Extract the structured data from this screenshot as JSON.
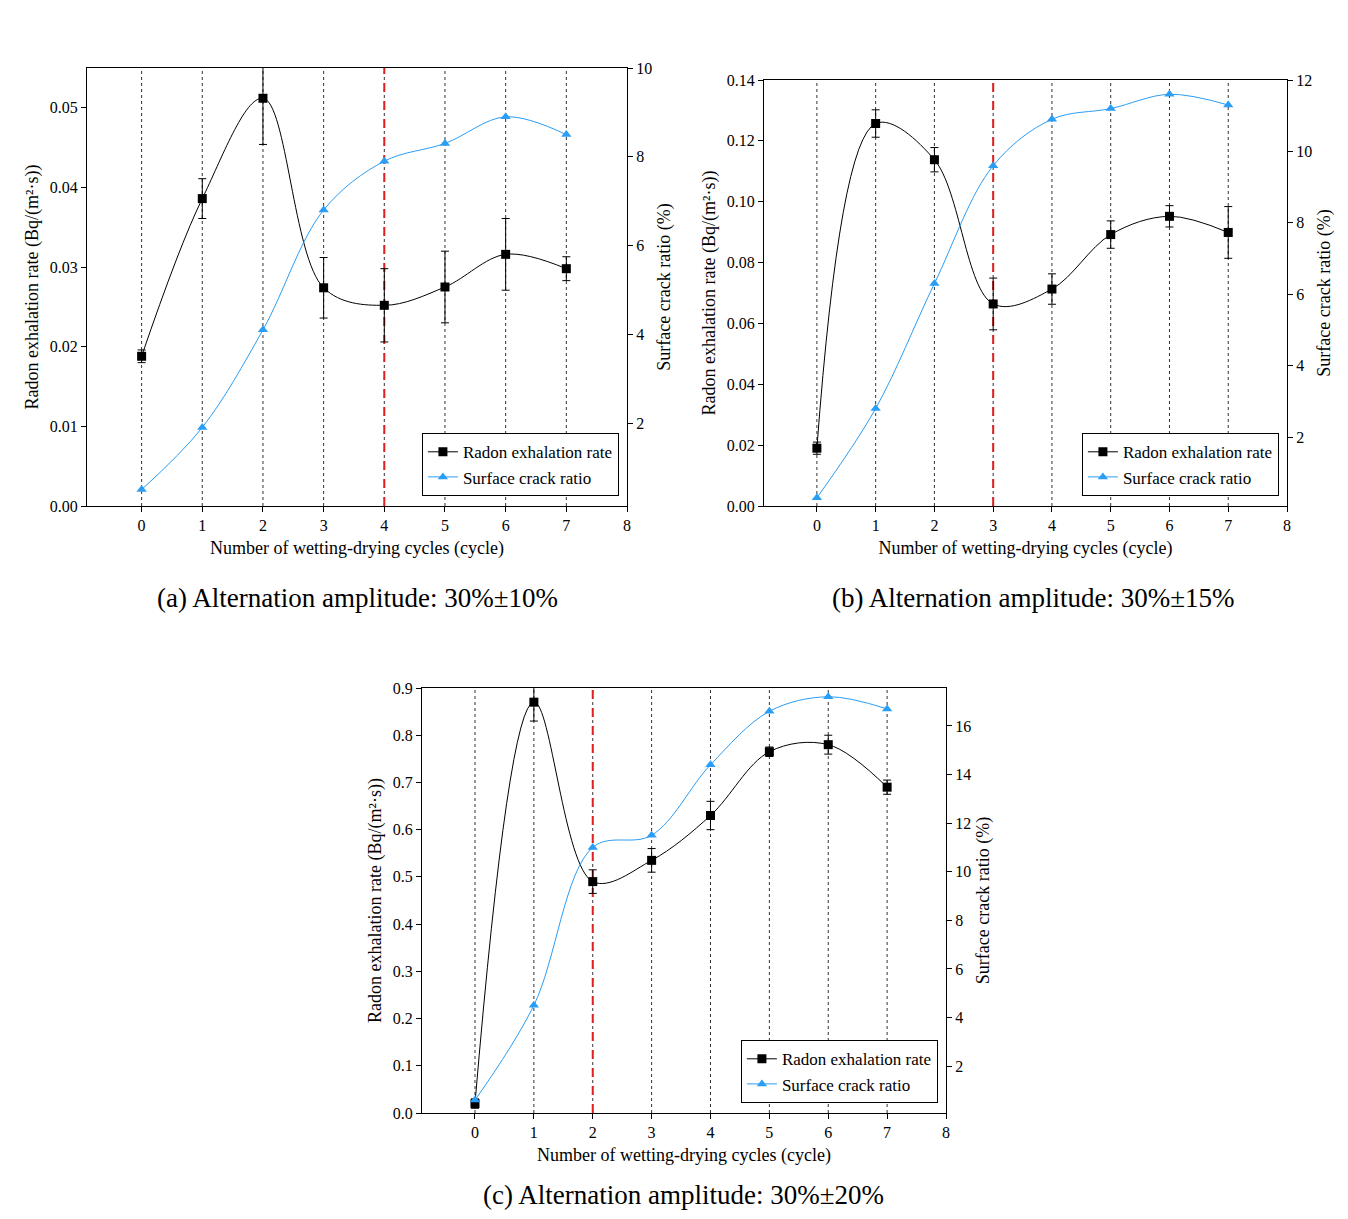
{
  "chart_data": [
    {
      "type": "line",
      "title": "(a) Alternation amplitude: 30%±10%",
      "x_label": "Number of wetting-drying cycles (cycle)",
      "y_label": "Radon exhalation rate (Bq/(m²·s))",
      "y2_label": "Surface crack ratio (%)",
      "x": [
        0,
        1,
        2,
        3,
        4,
        5,
        6,
        7
      ],
      "xlim": [
        -0.9,
        8
      ],
      "xticks": [
        0,
        1,
        2,
        3,
        4,
        5,
        6,
        7,
        8
      ],
      "ylim": [
        0,
        0.055
      ],
      "yticks": [
        {
          "value": 0,
          "label": "0.00"
        },
        0.01,
        0.02,
        0.03,
        0.04,
        0.05
      ],
      "y2lim": [
        0.13,
        10
      ],
      "y2ticks": [
        2,
        4,
        6,
        8,
        10
      ],
      "reference_x": 4,
      "grid": false,
      "legend": "lower right",
      "series": [
        {
          "name": "Radon exhalation rate",
          "color": "#000000",
          "marker": "square",
          "line_style": "solid",
          "values": [
            0.0188,
            0.0386,
            0.0512,
            0.0274,
            0.0252,
            0.0275,
            0.0316,
            0.0298
          ],
          "errors": [
            0.0008,
            0.0025,
            0.0058,
            0.0038,
            0.0046,
            0.0045,
            0.0045,
            0.0015
          ]
        },
        {
          "name": "Surface crack ratio",
          "color": "#2a9df4",
          "marker": "triangle",
          "line_style": "solid",
          "axis": "y2",
          "values": [
            0.5,
            1.9,
            4.1,
            6.8,
            7.9,
            8.3,
            8.9,
            8.5
          ]
        }
      ]
    },
    {
      "type": "line",
      "title": "(b) Alternation amplitude: 30%±15%",
      "x_label": "Number of wetting-drying cycles (cycle)",
      "y_label": "Radon exhalation rate (Bq/(m²·s))",
      "y2_label": "Surface crack ratio (%)",
      "x": [
        0,
        1,
        2,
        3,
        4,
        5,
        6,
        7
      ],
      "xlim": [
        -0.9,
        8
      ],
      "xticks": [
        0,
        1,
        2,
        3,
        4,
        5,
        6,
        7,
        8
      ],
      "ylim": [
        0,
        0.14
      ],
      "yticks": [
        {
          "value": 0,
          "label": "0.00"
        },
        0.02,
        0.04,
        0.06,
        0.08,
        {
          "value": 0.1,
          "label": "0.10"
        },
        0.12,
        0.14
      ],
      "y2lim": [
        0.07,
        12
      ],
      "y2ticks": [
        2,
        4,
        6,
        8,
        10,
        12
      ],
      "reference_x": 3,
      "grid": false,
      "legend": "lower right",
      "series": [
        {
          "name": "Radon exhalation rate",
          "color": "#000000",
          "marker": "square",
          "line_style": "solid",
          "values": [
            0.019,
            0.1257,
            0.1138,
            0.0664,
            0.0713,
            0.0892,
            0.0952,
            0.0899
          ],
          "errors": [
            0.002,
            0.0045,
            0.004,
            0.0085,
            0.005,
            0.0045,
            0.0035,
            0.0085
          ]
        },
        {
          "name": "Surface crack ratio",
          "color": "#2a9df4",
          "marker": "triangle",
          "line_style": "solid",
          "axis": "y2",
          "values": [
            0.3,
            2.8,
            6.3,
            9.6,
            10.9,
            11.2,
            11.6,
            11.3
          ]
        }
      ]
    },
    {
      "type": "line",
      "title": "(c) Alternation amplitude: 30%±20%",
      "x_label": "Number of wetting-drying cycles (cycle)",
      "y_label": "Radon exhalation rate (Bq/(m²·s))",
      "y2_label": "Surface crack ratio (%)",
      "x": [
        0,
        1,
        2,
        3,
        4,
        5,
        6,
        7
      ],
      "xlim": [
        -0.9,
        8
      ],
      "xticks": [
        0,
        1,
        2,
        3,
        4,
        5,
        6,
        7,
        8
      ],
      "ylim": [
        0,
        0.9
      ],
      "yticks": [
        {
          "value": 0,
          "label": "0.0"
        },
        0.1,
        0.2,
        0.3,
        0.4,
        0.5,
        0.6,
        0.7,
        0.8,
        0.9
      ],
      "y2lim": [
        0.07,
        17.56
      ],
      "y2ticks": [
        2,
        4,
        6,
        8,
        10,
        12,
        14,
        16
      ],
      "reference_x": 2,
      "grid": false,
      "legend": "lower right",
      "series": [
        {
          "name": "Radon exhalation rate",
          "color": "#000000",
          "marker": "square",
          "line_style": "solid",
          "values": [
            0.02,
            0.87,
            0.49,
            0.535,
            0.63,
            0.765,
            0.78,
            0.69
          ],
          "errors": [
            0.01,
            0.04,
            0.025,
            0.025,
            0.03,
            0.01,
            0.02,
            0.015
          ]
        },
        {
          "name": "Surface crack ratio",
          "color": "#2a9df4",
          "marker": "triangle",
          "line_style": "solid",
          "axis": "y2",
          "values": [
            0.6,
            4.5,
            11.0,
            11.5,
            14.4,
            16.6,
            17.2,
            16.7
          ]
        }
      ]
    }
  ]
}
